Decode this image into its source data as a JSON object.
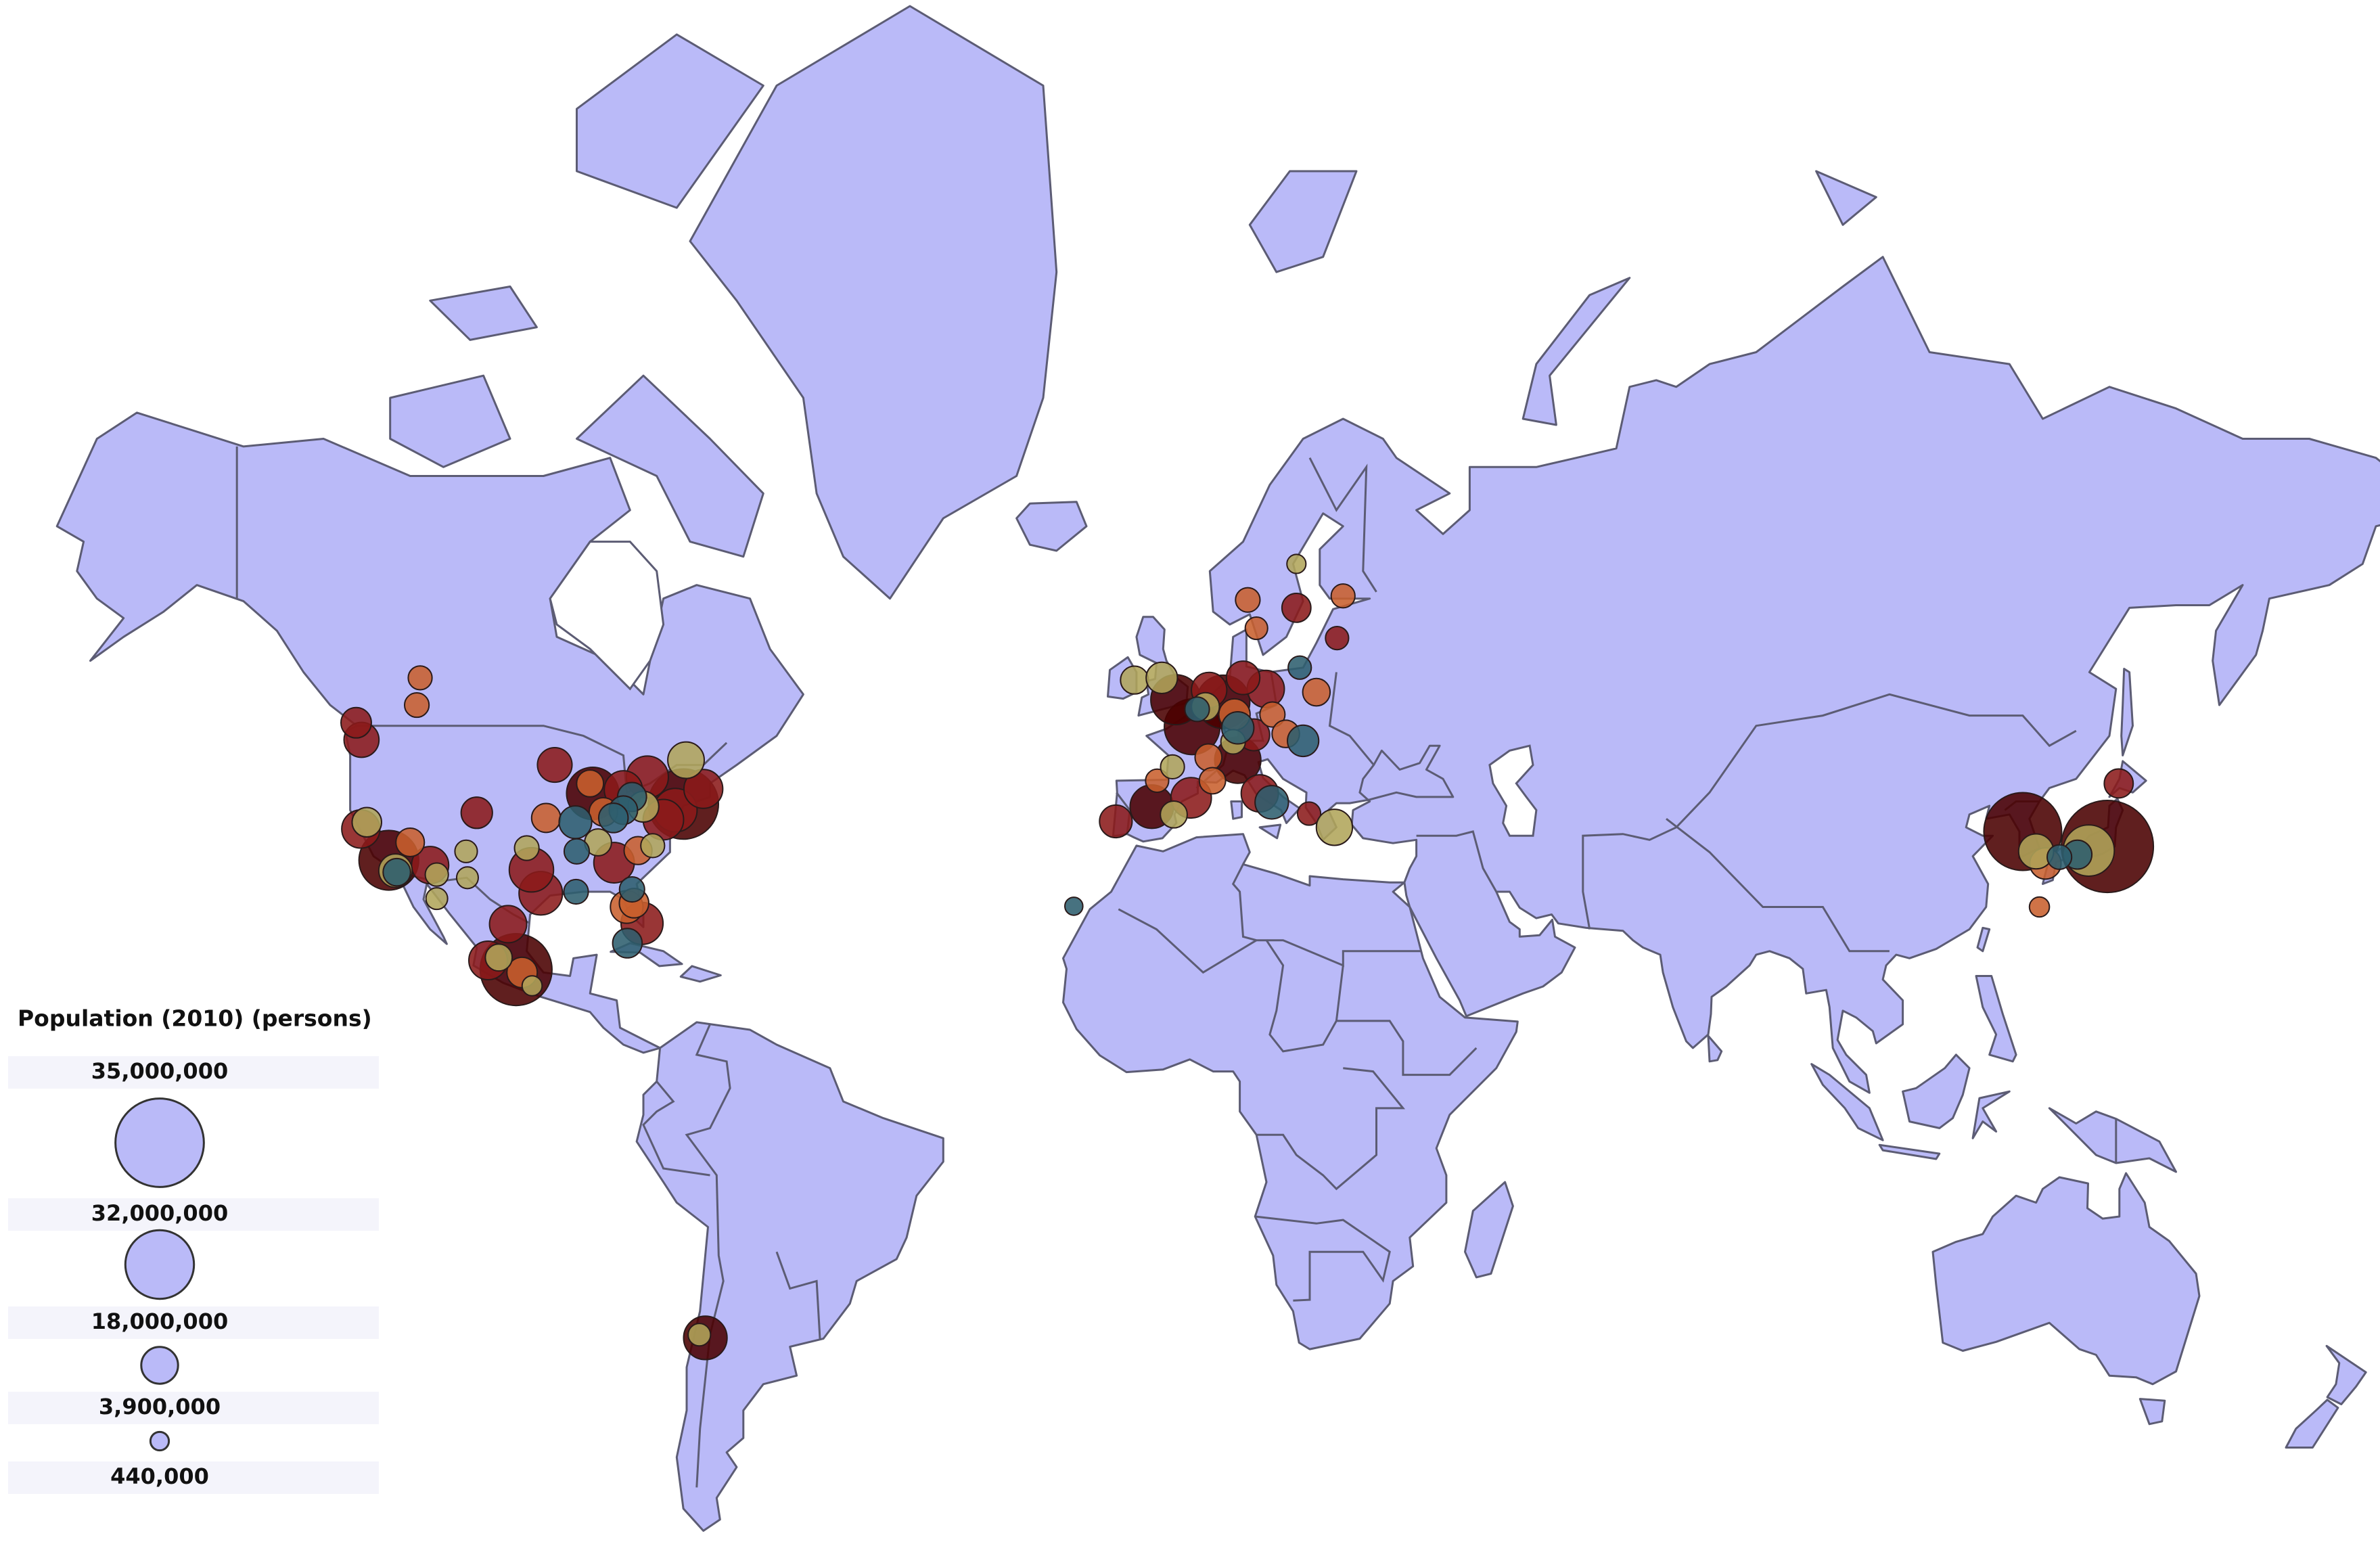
{
  "legend": {
    "title": "Population (2010) (persons)",
    "sizes": [
      {
        "value": 35000000,
        "label": "35,000,000"
      },
      {
        "value": 32000000,
        "label": "32,000,000"
      },
      {
        "value": 18000000,
        "label": "18,000,000"
      },
      {
        "value": 3900000,
        "label": "3,900,000"
      },
      {
        "value": 440000,
        "label": "440,000"
      }
    ]
  },
  "markers": [
    {
      "lon": 139.7,
      "lat": 35.7,
      "population": 35000000,
      "color": "#4a0000"
    },
    {
      "lon": 127.0,
      "lat": 37.5,
      "population": 24000000,
      "color": "#4a0000"
    },
    {
      "lon": -99.1,
      "lat": 19.4,
      "population": 20000000,
      "color": "#4a0000"
    },
    {
      "lon": -74.0,
      "lat": 40.7,
      "population": 19000000,
      "color": "#4a0000"
    },
    {
      "lon": -118.2,
      "lat": 34.0,
      "population": 13000000,
      "color": "#4a0000"
    },
    {
      "lon": 2.35,
      "lat": 48.9,
      "population": 11000000,
      "color": "#4a0000"
    },
    {
      "lon": 7.0,
      "lat": 51.3,
      "population": 10000000,
      "color": "#4a0000"
    },
    {
      "lon": -87.6,
      "lat": 41.9,
      "population": 9500000,
      "color": "#4a0000"
    },
    {
      "lon": -0.1,
      "lat": 51.5,
      "population": 8500000,
      "color": "#4a0000"
    },
    {
      "lon": 9.2,
      "lat": 45.5,
      "population": 7000000,
      "color": "#4a0000"
    },
    {
      "lon": -3.7,
      "lat": 40.4,
      "population": 6000000,
      "color": "#4a0000"
    },
    {
      "lon": -70.7,
      "lat": -33.4,
      "population": 6000000,
      "color": "#4a0000"
    },
    {
      "lon": -95.4,
      "lat": 29.8,
      "population": 6000000,
      "color": "#8b1a1a"
    },
    {
      "lon": -96.8,
      "lat": 32.8,
      "population": 6300000,
      "color": "#8b1a1a"
    },
    {
      "lon": -75.2,
      "lat": 40.0,
      "population": 6000000,
      "color": "#8b1a1a"
    },
    {
      "lon": -79.4,
      "lat": 43.7,
      "population": 5500000,
      "color": "#8b1a1a"
    },
    {
      "lon": -80.2,
      "lat": 25.8,
      "population": 5500000,
      "color": "#8b1a1a"
    },
    {
      "lon": -77.0,
      "lat": 38.9,
      "population": 5000000,
      "color": "#8b1a1a"
    },
    {
      "lon": -84.4,
      "lat": 33.7,
      "population": 5000000,
      "color": "#8b1a1a"
    },
    {
      "lon": 2.2,
      "lat": 41.4,
      "population": 5000000,
      "color": "#8b1a1a"
    },
    {
      "lon": -71.0,
      "lat": 42.4,
      "population": 4500000,
      "color": "#8b1a1a"
    },
    {
      "lon": -103.3,
      "lat": 20.7,
      "population": 4400000,
      "color": "#8b1a1a"
    },
    {
      "lon": -83.0,
      "lat": 42.3,
      "population": 4300000,
      "color": "#8b1a1a"
    },
    {
      "lon": -122.4,
      "lat": 37.8,
      "population": 4300000,
      "color": "#8b1a1a"
    },
    {
      "lon": -112.0,
      "lat": 33.4,
      "population": 4000000,
      "color": "#8b1a1a"
    },
    {
      "lon": -100.3,
      "lat": 25.7,
      "population": 4000000,
      "color": "#8b1a1a"
    },
    {
      "lon": 13.4,
      "lat": 52.5,
      "population": 4000000,
      "color": "#8b1a1a"
    },
    {
      "lon": 12.5,
      "lat": 41.9,
      "population": 4000000,
      "color": "#8b1a1a"
    },
    {
      "lon": 4.9,
      "lat": 52.4,
      "population": 3500000,
      "color": "#8b1a1a"
    },
    {
      "lon": -122.3,
      "lat": 47.6,
      "population": 3400000,
      "color": "#8b1a1a"
    },
    {
      "lon": -93.3,
      "lat": 45.0,
      "population": 3300000,
      "color": "#8b1a1a"
    },
    {
      "lon": 10.0,
      "lat": 53.5,
      "population": 3000000,
      "color": "#8b1a1a"
    },
    {
      "lon": -9.1,
      "lat": 38.7,
      "population": 2800000,
      "color": "#8b1a1a"
    },
    {
      "lon": 11.6,
      "lat": 48.1,
      "population": 2600000,
      "color": "#8b1a1a"
    },
    {
      "lon": -105.0,
      "lat": 39.7,
      "population": 2500000,
      "color": "#8b1a1a"
    },
    {
      "lon": -123.1,
      "lat": 49.3,
      "population": 2300000,
      "color": "#8b1a1a"
    },
    {
      "lon": 18.0,
      "lat": 59.3,
      "population": 2000000,
      "color": "#8b1a1a"
    },
    {
      "lon": 141.4,
      "lat": 43.0,
      "population": 2000000,
      "color": "#8b1a1a"
    },
    {
      "lon": 19.9,
      "lat": 39.6,
      "population": 1000000,
      "color": "#8b1a1a"
    },
    {
      "lon": 24.1,
      "lat": 56.9,
      "population": 1000000,
      "color": "#8b1a1a"
    },
    {
      "lon": -113.5,
      "lat": 53.5,
      "population": 1100000,
      "color": "#c8602e"
    },
    {
      "lon": -114.0,
      "lat": 51.0,
      "population": 1200000,
      "color": "#c8602e"
    },
    {
      "lon": -94.6,
      "lat": 39.1,
      "population": 2000000,
      "color": "#c8602e"
    },
    {
      "lon": -86.0,
      "lat": 39.8,
      "population": 1900000,
      "color": "#c8602e"
    },
    {
      "lon": -80.8,
      "lat": 35.2,
      "population": 1800000,
      "color": "#c8602e"
    },
    {
      "lon": -82.5,
      "lat": 28.0,
      "population": 2800000,
      "color": "#c8602e"
    },
    {
      "lon": -81.4,
      "lat": 28.5,
      "population": 2100000,
      "color": "#c8602e"
    },
    {
      "lon": -115.0,
      "lat": 36.2,
      "population": 1900000,
      "color": "#c8602e"
    },
    {
      "lon": -98.2,
      "lat": 19.0,
      "population": 2300000,
      "color": "#c8602e"
    },
    {
      "lon": -88.0,
      "lat": 43.0,
      "population": 1600000,
      "color": "#c8602e"
    },
    {
      "lon": 4.8,
      "lat": 45.8,
      "population": 1600000,
      "color": "#c8602e"
    },
    {
      "lon": 5.4,
      "lat": 43.3,
      "population": 1500000,
      "color": "#c8602e"
    },
    {
      "lon": 10.7,
      "lat": 59.9,
      "population": 1200000,
      "color": "#c8602e"
    },
    {
      "lon": 25.0,
      "lat": 60.2,
      "population": 1100000,
      "color": "#c8602e"
    },
    {
      "lon": 14.4,
      "lat": 50.1,
      "population": 1300000,
      "color": "#c8602e"
    },
    {
      "lon": 21.0,
      "lat": 52.2,
      "population": 1700000,
      "color": "#c8602e"
    },
    {
      "lon": 16.4,
      "lat": 48.2,
      "population": 1700000,
      "color": "#c8602e"
    },
    {
      "lon": 8.7,
      "lat": 50.1,
      "population": 2500000,
      "color": "#c8602e"
    },
    {
      "lon": 12.0,
      "lat": 57.7,
      "population": 900000,
      "color": "#c8602e"
    },
    {
      "lon": -2.9,
      "lat": 43.3,
      "population": 1000000,
      "color": "#c8602e"
    },
    {
      "lon": 129.5,
      "lat": 28.0,
      "population": 600000,
      "color": "#c8602e"
    },
    {
      "lon": 130.4,
      "lat": 33.6,
      "population": 2500000,
      "color": "#c8602e"
    },
    {
      "lon": -106.6,
      "lat": 35.1,
      "population": 900000,
      "color": "#b0a55a"
    },
    {
      "lon": -106.4,
      "lat": 31.8,
      "population": 800000,
      "color": "#b0a55a"
    },
    {
      "lon": -117.2,
      "lat": 32.7,
      "population": 3000000,
      "color": "#b0a55a"
    },
    {
      "lon": -111.0,
      "lat": 32.2,
      "population": 1000000,
      "color": "#b0a55a"
    },
    {
      "lon": -121.5,
      "lat": 38.6,
      "population": 2100000,
      "color": "#b0a55a"
    },
    {
      "lon": -97.5,
      "lat": 35.5,
      "population": 1200000,
      "color": "#b0a55a"
    },
    {
      "lon": -86.8,
      "lat": 36.2,
      "population": 1600000,
      "color": "#b0a55a"
    },
    {
      "lon": -80.0,
      "lat": 40.4,
      "population": 2400000,
      "color": "#b0a55a"
    },
    {
      "lon": -78.6,
      "lat": 35.8,
      "population": 1100000,
      "color": "#b0a55a"
    },
    {
      "lon": -73.6,
      "lat": 45.5,
      "population": 3800000,
      "color": "#b0a55a"
    },
    {
      "lon": -111.0,
      "lat": 29.1,
      "population": 800000,
      "color": "#b0a55a"
    },
    {
      "lon": -101.7,
      "lat": 21.1,
      "population": 1600000,
      "color": "#b0a55a"
    },
    {
      "lon": -96.7,
      "lat": 17.1,
      "population": 600000,
      "color": "#b0a55a"
    },
    {
      "lon": -0.6,
      "lat": 44.8,
      "population": 1100000,
      "color": "#b0a55a"
    },
    {
      "lon": -0.4,
      "lat": 39.5,
      "population": 1600000,
      "color": "#b0a55a"
    },
    {
      "lon": 8.5,
      "lat": 47.4,
      "population": 1200000,
      "color": "#b0a55a"
    },
    {
      "lon": 4.35,
      "lat": 50.85,
      "population": 1800000,
      "color": "#b0a55a"
    },
    {
      "lon": -6.3,
      "lat": 53.3,
      "population": 1800000,
      "color": "#b0a55a"
    },
    {
      "lon": -2.2,
      "lat": 53.5,
      "population": 2500000,
      "color": "#b0a55a"
    },
    {
      "lon": 23.7,
      "lat": 38.0,
      "population": 3700000,
      "color": "#b0a55a"
    },
    {
      "lon": 18.0,
      "lat": 62.5,
      "population": 500000,
      "color": "#b0a55a"
    },
    {
      "lon": -71.6,
      "lat": -33.0,
      "population": 900000,
      "color": "#b0a55a"
    },
    {
      "lon": 136.9,
      "lat": 35.2,
      "population": 9000000,
      "color": "#b0a55a"
    },
    {
      "lon": 129.0,
      "lat": 35.1,
      "population": 3400000,
      "color": "#b0a55a"
    },
    {
      "lon": -15.4,
      "lat": 28.1,
      "population": 400000,
      "color": "#2e5f6e"
    },
    {
      "lon": -82.4,
      "lat": 23.1,
      "population": 2100000,
      "color": "#2e5f6e"
    },
    {
      "lon": -81.7,
      "lat": 41.5,
      "population": 2000000,
      "color": "#2e5f6e"
    },
    {
      "lon": -83.0,
      "lat": 40.0,
      "population": 1900000,
      "color": "#2e5f6e"
    },
    {
      "lon": -84.5,
      "lat": 39.1,
      "population": 2100000,
      "color": "#2e5f6e"
    },
    {
      "lon": -90.2,
      "lat": 38.6,
      "population": 2800000,
      "color": "#2e5f6e"
    },
    {
      "lon": -90.0,
      "lat": 35.1,
      "population": 1300000,
      "color": "#2e5f6e"
    },
    {
      "lon": -90.1,
      "lat": 30.0,
      "population": 1200000,
      "color": "#2e5f6e"
    },
    {
      "lon": -81.7,
      "lat": 30.3,
      "population": 1300000,
      "color": "#2e5f6e"
    },
    {
      "lon": -117.0,
      "lat": 32.5,
      "population": 1700000,
      "color": "#2e5f6e"
    },
    {
      "lon": 3.1,
      "lat": 50.6,
      "population": 1200000,
      "color": "#2e5f6e"
    },
    {
      "lon": 9.2,
      "lat": 48.8,
      "population": 2700000,
      "color": "#2e5f6e"
    },
    {
      "lon": 14.3,
      "lat": 40.9,
      "population": 3000000,
      "color": "#2e5f6e"
    },
    {
      "lon": 19.0,
      "lat": 47.5,
      "population": 2500000,
      "color": "#2e5f6e"
    },
    {
      "lon": 18.5,
      "lat": 54.4,
      "population": 1000000,
      "color": "#2e5f6e"
    },
    {
      "lon": 135.2,
      "lat": 34.7,
      "population": 2000000,
      "color": "#2e5f6e"
    },
    {
      "lon": 132.5,
      "lat": 34.4,
      "population": 1200000,
      "color": "#2e5f6e"
    }
  ]
}
